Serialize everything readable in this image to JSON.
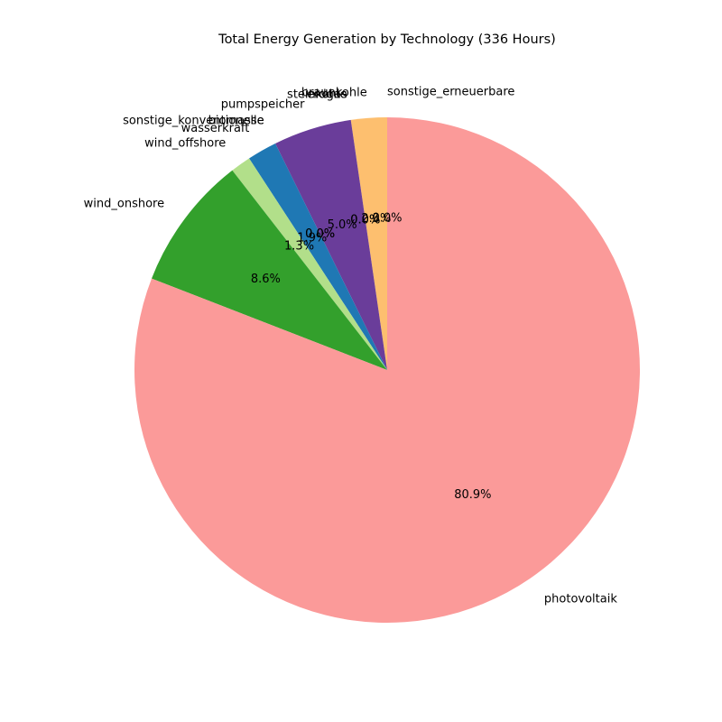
{
  "chart_data": {
    "type": "pie",
    "title": "Total Energy Generation by Technology (336 Hours)",
    "start_angle_deg": 90,
    "direction": "counterclockwise",
    "slices": [
      {
        "label": "sonstige_erneuerbare",
        "value": 0.0,
        "pct_label": "0.0%",
        "color": "#fdbf6f"
      },
      {
        "label": "braunkohle",
        "value": 2.3,
        "pct_label": "2.3%",
        "color": "#fdbf6f"
      },
      {
        "label": "erdgas",
        "value": 0.0,
        "pct_label": "0.0%",
        "color": "#6a3d9a"
      },
      {
        "label": "steinkohle",
        "value": 0.0,
        "pct_label": "0.0%",
        "color": "#6a3d9a"
      },
      {
        "label": "pumpspeicher",
        "value": 5.0,
        "pct_label": "5.0%",
        "color": "#6a3d9a"
      },
      {
        "label": "biomasse",
        "value": 0.0,
        "pct_label": "0.0%",
        "color": "#1f78b4"
      },
      {
        "label": "sonstige_konventionelle",
        "value": 0.0,
        "pct_label": "0.0%",
        "color": "#1f78b4"
      },
      {
        "label": "wasserkraft",
        "value": 1.9,
        "pct_label": "1.9%",
        "color": "#1f78b4"
      },
      {
        "label": "wind_offshore",
        "value": 1.3,
        "pct_label": "1.3%",
        "color": "#b2df8a"
      },
      {
        "label": "wind_onshore",
        "value": 8.6,
        "pct_label": "8.6%",
        "color": "#33a02c"
      },
      {
        "label": "photovoltaik",
        "value": 80.9,
        "pct_label": "80.9%",
        "color": "#fb9a99"
      }
    ]
  }
}
